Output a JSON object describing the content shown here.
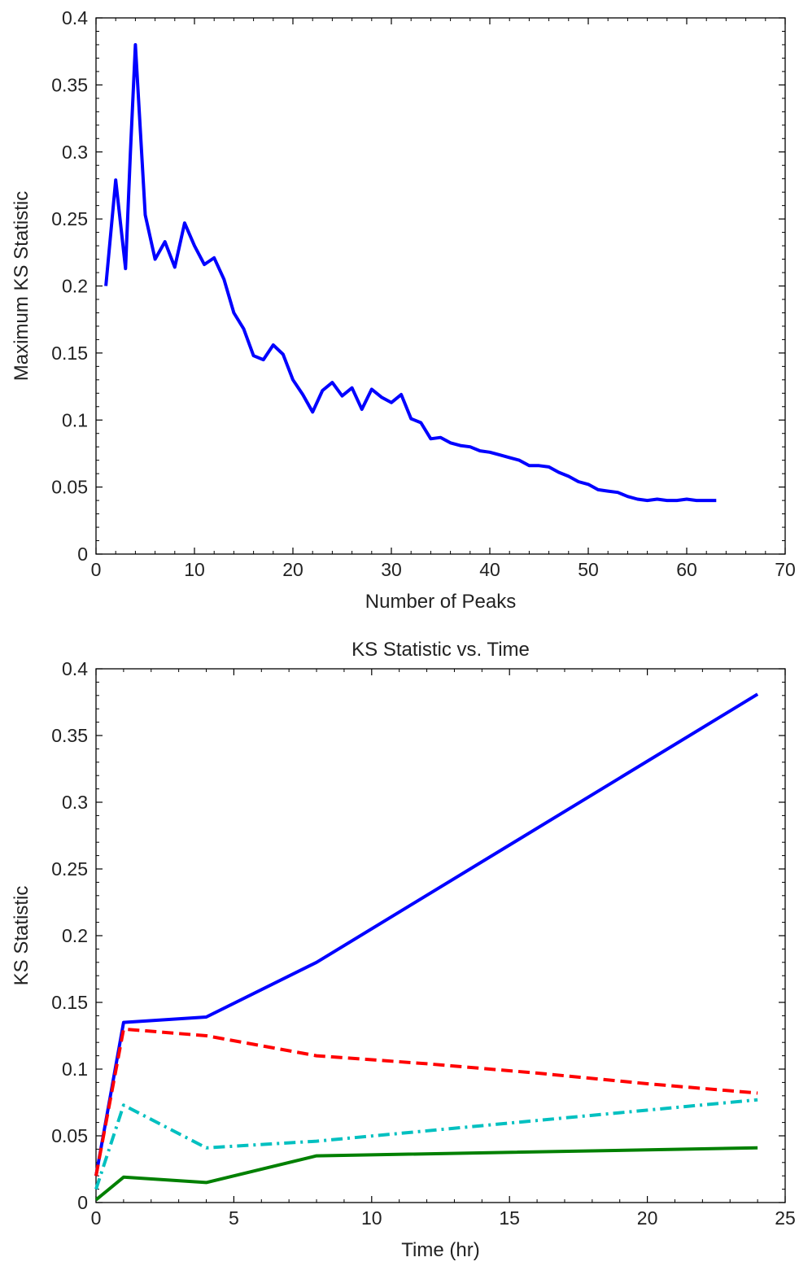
{
  "chart_data": [
    {
      "type": "line",
      "title": "",
      "xlabel": "Number of Peaks",
      "ylabel": "Maximum KS Statistic",
      "xlim": [
        0,
        70
      ],
      "ylim": [
        0,
        0.4
      ],
      "xticks": [
        "0",
        "10",
        "20",
        "30",
        "40",
        "50",
        "60",
        "70"
      ],
      "yticks": [
        "0",
        "0.05",
        "0.1",
        "0.15",
        "0.2",
        "0.25",
        "0.3",
        "0.35",
        "0.4"
      ],
      "grid": false,
      "series": [
        {
          "color": "#0000ff",
          "style": "solid",
          "x": [
            1,
            2,
            3,
            3.5,
            4,
            5,
            6,
            7,
            8,
            9,
            10,
            11,
            12,
            13,
            14,
            15,
            16,
            17,
            18,
            19,
            20,
            21,
            22,
            23,
            24,
            25,
            26,
            27,
            28,
            29,
            30,
            31,
            32,
            33,
            34,
            35,
            36,
            37,
            38,
            39,
            40,
            41,
            42,
            43,
            44,
            45,
            46,
            47,
            48,
            49,
            50,
            51,
            52,
            53,
            54,
            55,
            56,
            57,
            58,
            59,
            60,
            61,
            62,
            63
          ],
          "y": [
            0.2,
            0.279,
            0.213,
            0.3,
            0.38,
            0.253,
            0.22,
            0.233,
            0.214,
            0.247,
            0.23,
            0.216,
            0.221,
            0.205,
            0.18,
            0.168,
            0.148,
            0.145,
            0.156,
            0.149,
            0.13,
            0.119,
            0.106,
            0.122,
            0.128,
            0.118,
            0.124,
            0.108,
            0.123,
            0.117,
            0.113,
            0.119,
            0.101,
            0.098,
            0.086,
            0.087,
            0.083,
            0.081,
            0.08,
            0.077,
            0.076,
            0.074,
            0.072,
            0.07,
            0.066,
            0.066,
            0.065,
            0.061,
            0.058,
            0.054,
            0.052,
            0.048,
            0.047,
            0.046,
            0.043,
            0.041,
            0.04,
            0.041,
            0.04,
            0.04,
            0.041,
            0.04,
            0.04,
            0.04
          ]
        }
      ]
    },
    {
      "type": "line",
      "title": "KS Statistic vs. Time",
      "xlabel": "Time (hr)",
      "ylabel": "KS Statistic",
      "xlim": [
        0,
        25
      ],
      "ylim": [
        0,
        0.4
      ],
      "xticks": [
        "0",
        "5",
        "10",
        "15",
        "20",
        "25"
      ],
      "yticks": [
        "0",
        "0.05",
        "0.1",
        "0.15",
        "0.2",
        "0.25",
        "0.3",
        "0.35",
        "0.4"
      ],
      "grid": false,
      "series": [
        {
          "color": "#0000ff",
          "style": "solid",
          "x": [
            0,
            1,
            4,
            8,
            24
          ],
          "y": [
            0.02,
            0.135,
            0.139,
            0.18,
            0.381
          ]
        },
        {
          "color": "#ff0000",
          "style": "dashed",
          "x": [
            0,
            1,
            4,
            8,
            12,
            16,
            20,
            24
          ],
          "y": [
            0.02,
            0.13,
            0.125,
            0.11,
            0.104,
            0.097,
            0.089,
            0.082
          ]
        },
        {
          "color": "#00c0c0",
          "style": "dashdot",
          "x": [
            0,
            1,
            4,
            8,
            24
          ],
          "y": [
            0.01,
            0.073,
            0.041,
            0.046,
            0.077
          ]
        },
        {
          "color": "#008000",
          "style": "solid",
          "x": [
            0,
            1,
            4,
            8,
            24
          ],
          "y": [
            0.002,
            0.019,
            0.015,
            0.035,
            0.041
          ]
        }
      ]
    }
  ]
}
